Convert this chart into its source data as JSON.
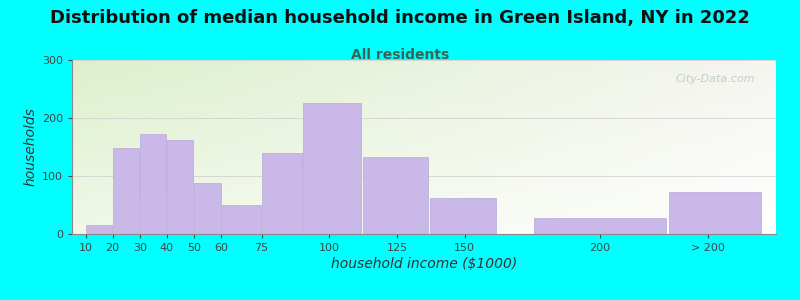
{
  "title": "Distribution of median household income in Green Island, NY in 2022",
  "subtitle": "All residents",
  "xlabel": "household income ($1000)",
  "ylabel": "households",
  "bar_labels": [
    "10",
    "20",
    "30",
    "40",
    "50",
    "60",
    "75",
    "100",
    "125",
    "150",
    "200",
    "> 200"
  ],
  "bar_values": [
    15,
    148,
    172,
    162,
    88,
    50,
    140,
    225,
    132,
    62,
    27,
    72
  ],
  "x_left_edges": [
    10,
    20,
    30,
    40,
    50,
    60,
    75,
    90,
    112,
    137,
    175,
    225
  ],
  "x_right_edges": [
    20,
    30,
    40,
    50,
    60,
    75,
    90,
    112,
    137,
    162,
    225,
    260
  ],
  "x_tick_positions": [
    10,
    20,
    30,
    40,
    50,
    60,
    75,
    100,
    125,
    150,
    200,
    240
  ],
  "bar_color": "#c9b8e8",
  "bar_edge_color": "#b8a8d8",
  "ylim": [
    0,
    300
  ],
  "xlim": [
    5,
    265
  ],
  "yticks": [
    0,
    100,
    200,
    300
  ],
  "background_color": "#00ffff",
  "plot_bg_color_top_left": "#ddf0cc",
  "plot_bg_color_right": "#f0f0f0",
  "title_fontsize": 13,
  "subtitle_fontsize": 10,
  "subtitle_color": "#336655",
  "axis_label_fontsize": 10,
  "tick_fontsize": 8,
  "watermark_text": "City-Data.com",
  "watermark_color": "#b8c8c8"
}
